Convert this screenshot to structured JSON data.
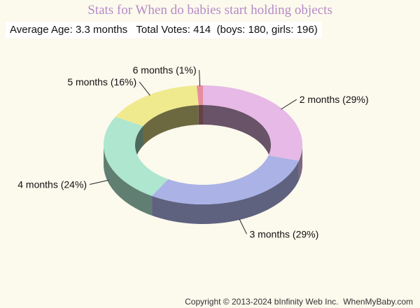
{
  "title": "Stats for When do babies start holding objects",
  "summary": "Average Age: 3.3 months   Total Votes: 414  (boys: 180, girls: 196)",
  "footer": "Copyright © 2013-2024 bInfinity Web Inc.  WhenMyBaby.com",
  "chart_data": {
    "type": "pie",
    "variant": "donut-3d",
    "slices": [
      {
        "label": "2 months (29%)",
        "value": 29,
        "color": "#e6b9e6"
      },
      {
        "label": "3 months (29%)",
        "value": 29,
        "color": "#aab2e6"
      },
      {
        "label": "4 months (24%)",
        "value": 24,
        "color": "#aee6cf"
      },
      {
        "label": "5 months (16%)",
        "value": 16,
        "color": "#f0ea8e"
      },
      {
        "label": "6 months (1%)",
        "value": 1,
        "color": "#e68e9f"
      }
    ]
  }
}
